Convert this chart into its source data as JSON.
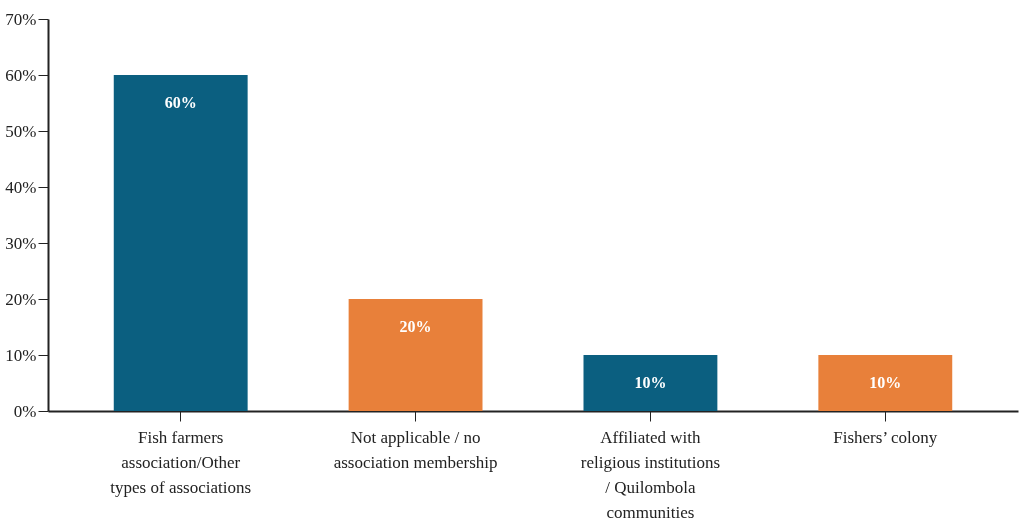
{
  "chart_data": {
    "type": "bar",
    "categories": [
      "Fish farmers association/Other types of associations",
      "Not applicable / no association membership",
      "Affiliated with religious institutions / Quilombola communities",
      "Fishers’ colony"
    ],
    "values": [
      60,
      20,
      10,
      10
    ],
    "colors": [
      "#0b5f80",
      "#e8803a",
      "#0b5f80",
      "#e8803a"
    ],
    "value_labels": [
      "60%",
      "20%",
      "10%",
      "10%"
    ],
    "ylim": [
      0,
      70
    ],
    "yticks": [
      {
        "value": 0,
        "label": "0%"
      },
      {
        "value": 10,
        "label": "10%"
      },
      {
        "value": 20,
        "label": "20%"
      },
      {
        "value": 30,
        "label": "30%"
      },
      {
        "value": 40,
        "label": "40%"
      },
      {
        "value": 50,
        "label": "50%"
      },
      {
        "value": 60,
        "label": "60%"
      },
      {
        "value": 70,
        "label": "70%"
      }
    ],
    "grid": false
  }
}
